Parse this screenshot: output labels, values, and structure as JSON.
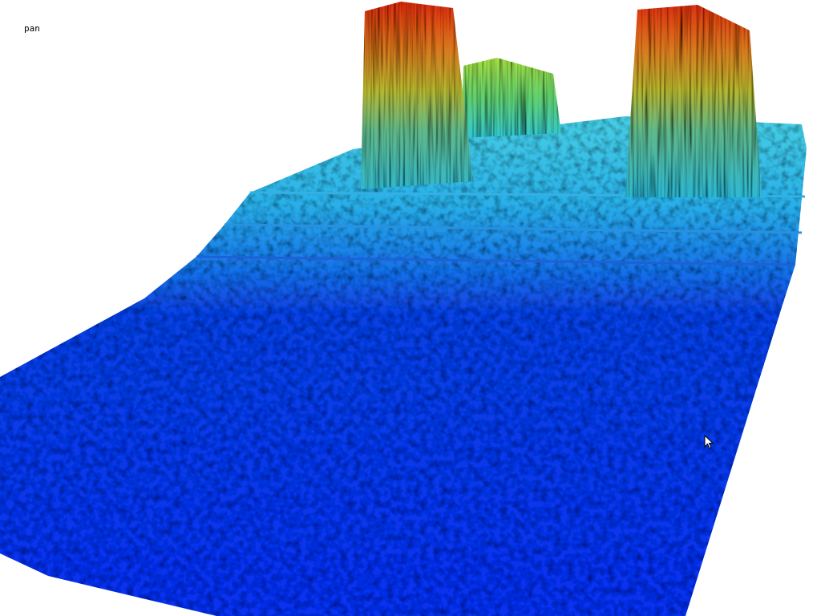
{
  "viewer": {
    "mode_label": "pan",
    "colormap": {
      "high": "#e02a10",
      "upper": "#f0a020",
      "mid": "#b8e030",
      "lower": "#30c8d8",
      "low_mid": "#1e8ee8",
      "low": "#0a2ee6"
    },
    "background": "#ffffff"
  }
}
